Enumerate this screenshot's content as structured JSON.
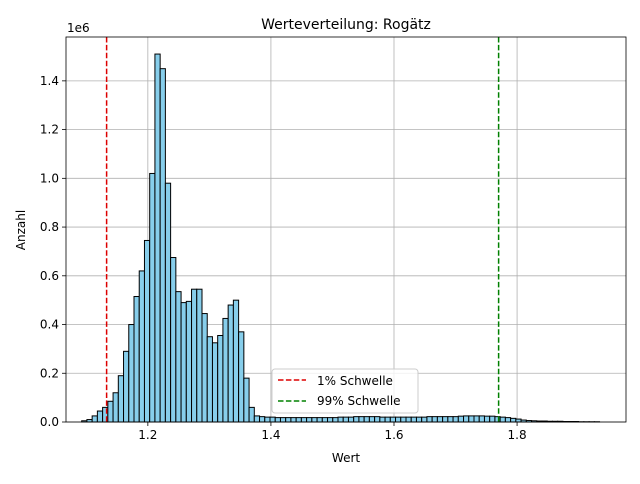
{
  "chart_data": {
    "type": "bar",
    "title": "Werteverteilung: Rogätz",
    "xlabel": "Wert",
    "ylabel": "Anzahl",
    "y_offset_label": "1e6",
    "xlim": [
      1.067,
      1.977
    ],
    "ylim": [
      0,
      1.58
    ],
    "xticks": [
      "1.2",
      "1.4",
      "1.6",
      "1.8"
    ],
    "xtick_values": [
      1.2,
      1.4,
      1.6,
      1.8
    ],
    "yticks": [
      "0.0",
      "0.2",
      "0.4",
      "0.6",
      "0.8",
      "1.0",
      "1.2",
      "1.4"
    ],
    "ytick_values": [
      0.0,
      0.2,
      0.4,
      0.6,
      0.8,
      1.0,
      1.2,
      1.4
    ],
    "grid": true,
    "bar_color": "#87ceeb",
    "edge_color": "#000000",
    "bin_start": 1.0925,
    "bin_width": 0.0085,
    "values": [
      0.005,
      0.01,
      0.025,
      0.045,
      0.06,
      0.085,
      0.12,
      0.19,
      0.29,
      0.4,
      0.515,
      0.62,
      0.745,
      1.02,
      1.51,
      1.45,
      0.98,
      0.675,
      0.535,
      0.49,
      0.495,
      0.545,
      0.545,
      0.445,
      0.35,
      0.325,
      0.355,
      0.425,
      0.48,
      0.5,
      0.37,
      0.18,
      0.06,
      0.025,
      0.022,
      0.02,
      0.02,
      0.018,
      0.018,
      0.018,
      0.018,
      0.018,
      0.018,
      0.018,
      0.018,
      0.018,
      0.018,
      0.018,
      0.018,
      0.02,
      0.02,
      0.02,
      0.022,
      0.022,
      0.022,
      0.022,
      0.022,
      0.02,
      0.02,
      0.02,
      0.02,
      0.02,
      0.02,
      0.02,
      0.02,
      0.02,
      0.022,
      0.022,
      0.022,
      0.022,
      0.022,
      0.022,
      0.024,
      0.025,
      0.025,
      0.025,
      0.025,
      0.024,
      0.024,
      0.022,
      0.02,
      0.018,
      0.015,
      0.012,
      0.008,
      0.006,
      0.005,
      0.004,
      0.004,
      0.003,
      0.003,
      0.003,
      0.002,
      0.002,
      0.002,
      0.001,
      0.001,
      0.001,
      0.001
    ],
    "thresholds": [
      {
        "name": "1% Schwelle",
        "x": 1.133,
        "color": "#dd0000"
      },
      {
        "name": "99% Schwelle",
        "x": 1.77,
        "color": "#008000"
      }
    ],
    "legend_position": "lower center"
  }
}
